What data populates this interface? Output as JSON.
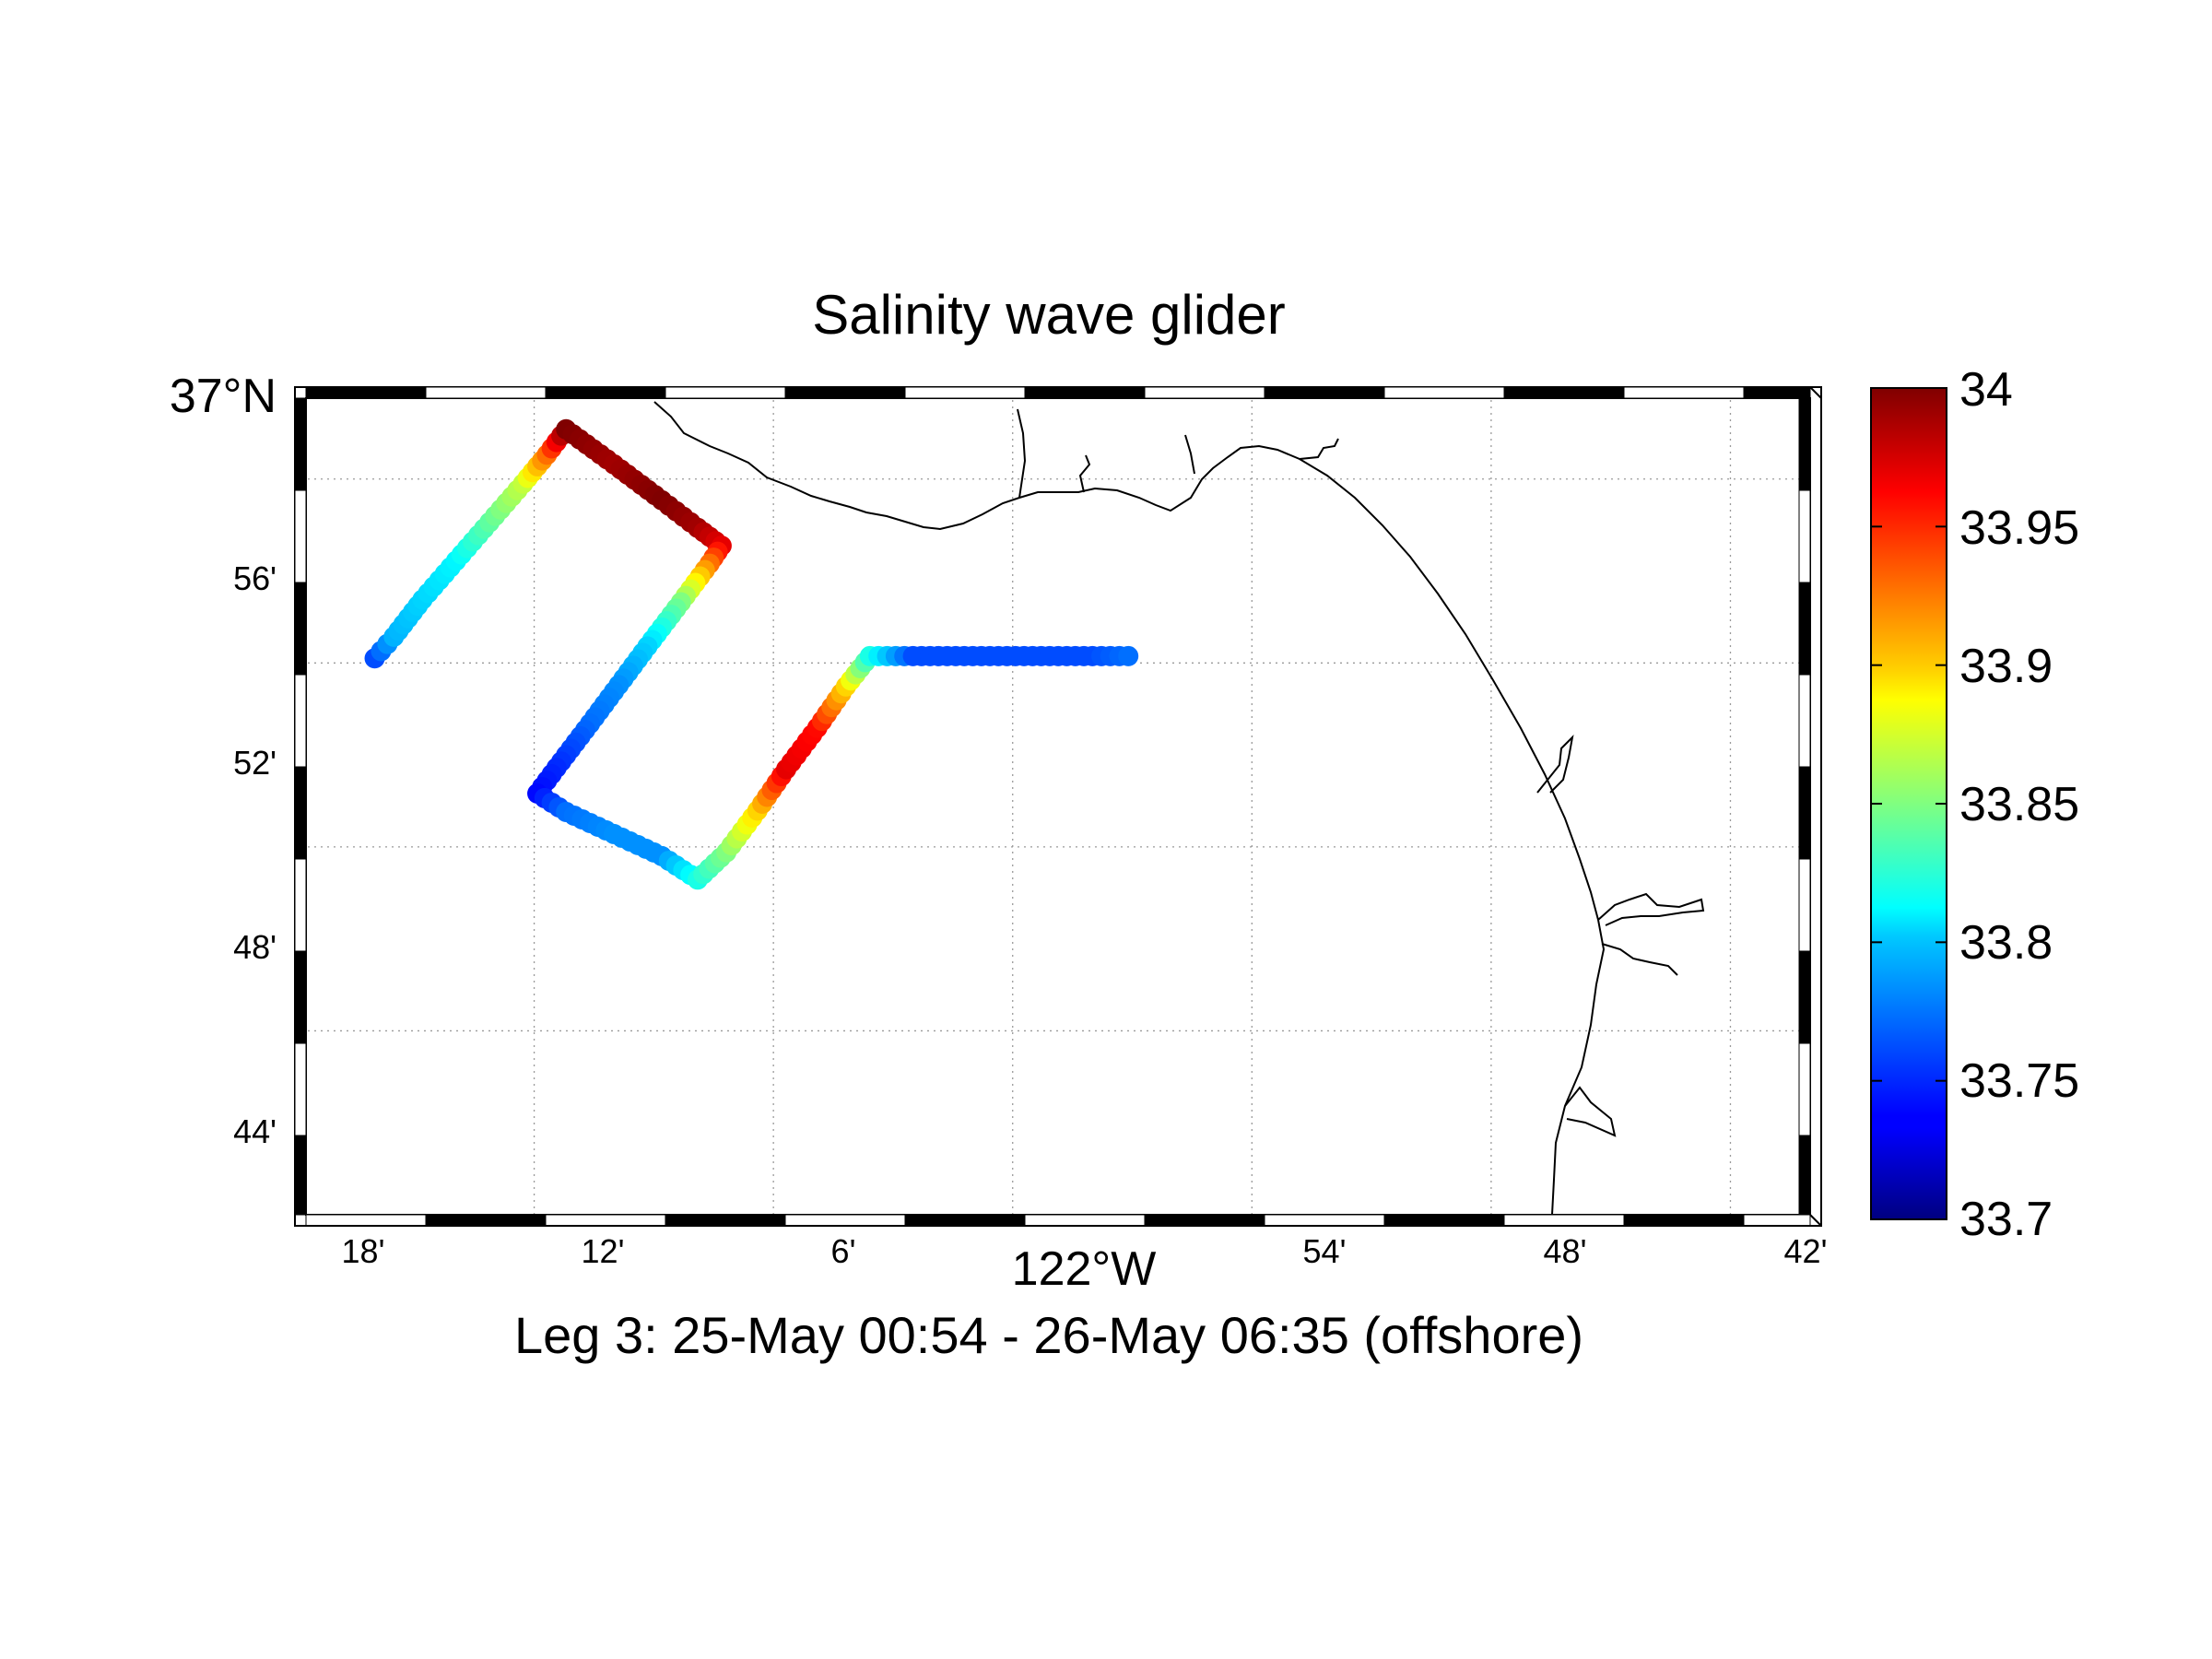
{
  "figure": {
    "title": "Salinity wave glider",
    "subtitle": "Leg 3: 25-May 00:54 - 26-May 06:35 (offshore)"
  },
  "map": {
    "lon_range": [
      -122.333333,
      -121.7
    ],
    "lat_range": [
      36.7,
      37.0
    ],
    "lat_tick_labels": [
      "37°N",
      "56'",
      "52'",
      "48'",
      "44'"
    ],
    "lon_tick_labels": [
      "18'",
      "12'",
      "6'",
      "122°W",
      "54'",
      "48'",
      "42'"
    ],
    "grid": true,
    "coastline_color": "#000000",
    "track_colormap": "jet"
  },
  "colorbar": {
    "min": 33.7,
    "max": 34.0,
    "tick_labels": [
      "34",
      "33.95",
      "33.9",
      "33.85",
      "33.8",
      "33.75",
      "33.7"
    ]
  },
  "chart_data": {
    "type": "scatter",
    "title": "Salinity wave glider",
    "xlabel": "122°W",
    "color_variable_range": [
      33.7,
      34.0
    ],
    "track": [
      {
        "lon": -122.3,
        "lat": 36.9017,
        "salinity": 33.76
      },
      {
        "lon": -122.292,
        "lat": 36.9095,
        "salinity": 33.79
      },
      {
        "lon": -122.28,
        "lat": 36.923,
        "salinity": 33.8
      },
      {
        "lon": -122.266,
        "lat": 36.937,
        "salinity": 33.81
      },
      {
        "lon": -122.252,
        "lat": 36.951,
        "salinity": 33.84
      },
      {
        "lon": -122.238,
        "lat": 36.965,
        "salinity": 33.87
      },
      {
        "lon": -122.228,
        "lat": 36.9755,
        "salinity": 33.93
      },
      {
        "lon": -122.22,
        "lat": 36.9847,
        "salinity": 34.0
      },
      {
        "lon": -122.2,
        "lat": 36.972,
        "salinity": 33.99
      },
      {
        "lon": -122.18,
        "lat": 36.959,
        "salinity": 34.0
      },
      {
        "lon": -122.165,
        "lat": 36.949,
        "salinity": 33.99
      },
      {
        "lon": -122.155,
        "lat": 36.9425,
        "salinity": 33.97
      },
      {
        "lon": -122.16,
        "lat": 36.936,
        "salinity": 33.93
      },
      {
        "lon": -122.172,
        "lat": 36.922,
        "salinity": 33.85
      },
      {
        "lon": -122.186,
        "lat": 36.906,
        "salinity": 33.8
      },
      {
        "lon": -122.198,
        "lat": 36.892,
        "salinity": 33.78
      },
      {
        "lon": -122.21,
        "lat": 36.878,
        "salinity": 33.77
      },
      {
        "lon": -122.224,
        "lat": 36.862,
        "salinity": 33.75
      },
      {
        "lon": -122.232,
        "lat": 36.8527,
        "salinity": 33.74
      },
      {
        "lon": -122.22,
        "lat": 36.846,
        "salinity": 33.77
      },
      {
        "lon": -122.2,
        "lat": 36.838,
        "salinity": 33.78
      },
      {
        "lon": -122.18,
        "lat": 36.83,
        "salinity": 33.78
      },
      {
        "lon": -122.165,
        "lat": 36.8215,
        "salinity": 33.82
      },
      {
        "lon": -122.153,
        "lat": 36.8314,
        "salinity": 33.85
      },
      {
        "lon": -122.14,
        "lat": 36.8465,
        "salinity": 33.9
      },
      {
        "lon": -122.128,
        "lat": 36.8615,
        "salinity": 33.97
      },
      {
        "lon": -122.115,
        "lat": 36.8765,
        "salinity": 33.96
      },
      {
        "lon": -122.103,
        "lat": 36.8915,
        "salinity": 33.9
      },
      {
        "lon": -122.093,
        "lat": 36.9025,
        "salinity": 33.82
      },
      {
        "lon": -122.075,
        "lat": 36.9025,
        "salinity": 33.76
      },
      {
        "lon": -122.05,
        "lat": 36.9025,
        "salinity": 33.76
      },
      {
        "lon": -122.025,
        "lat": 36.9025,
        "salinity": 33.76
      },
      {
        "lon": -122.0,
        "lat": 36.9025,
        "salinity": 33.76
      },
      {
        "lon": -121.985,
        "lat": 36.9025,
        "salinity": 33.77
      }
    ]
  }
}
